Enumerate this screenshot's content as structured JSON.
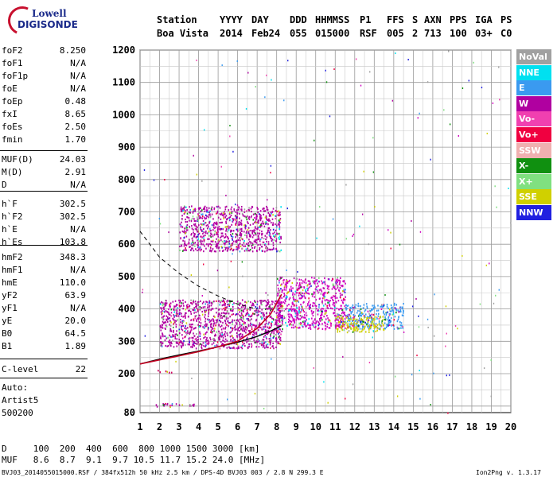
{
  "logo": {
    "line1": "Lowell",
    "line2": "DIGISONDE"
  },
  "header": {
    "labels": [
      "Station",
      "YYYY",
      "DAY",
      "DDD",
      "HHMMSS",
      "P1",
      "FFS",
      "S",
      "AXN",
      "PPS",
      "IGA",
      "PS"
    ],
    "values": [
      "Boa Vista",
      "2014",
      "Feb24",
      "055",
      "015000",
      "RSF",
      "005",
      "2",
      "713",
      "100",
      "03+",
      "C0"
    ]
  },
  "params": [
    {
      "name": "foF2",
      "value": "8.250"
    },
    {
      "name": "foF1",
      "value": "N/A"
    },
    {
      "name": "foF1p",
      "value": "N/A"
    },
    {
      "name": "foE",
      "value": "N/A"
    },
    {
      "name": "foEp",
      "value": "0.48"
    },
    {
      "name": "fxI",
      "value": "8.65"
    },
    {
      "name": "foEs",
      "value": "2.50"
    },
    {
      "name": "fmin",
      "value": "1.70"
    },
    {
      "name": "MUF(D)",
      "value": "24.03"
    },
    {
      "name": "M(D)",
      "value": "2.91"
    },
    {
      "name": "D",
      "value": "N/A"
    },
    {
      "name": "h`F",
      "value": "302.5"
    },
    {
      "name": "h`F2",
      "value": "302.5"
    },
    {
      "name": "h`E",
      "value": "N/A"
    },
    {
      "name": "h`Es",
      "value": "103.8"
    },
    {
      "name": "hmF2",
      "value": "348.3"
    },
    {
      "name": "hmF1",
      "value": "N/A"
    },
    {
      "name": "hmE",
      "value": "110.0"
    },
    {
      "name": "yF2",
      "value": "63.9"
    },
    {
      "name": "yF1",
      "value": "N/A"
    },
    {
      "name": "yE",
      "value": "20.0"
    },
    {
      "name": "B0",
      "value": "64.5"
    },
    {
      "name": "B1",
      "value": "1.89"
    },
    {
      "name": "C-level",
      "value": "22"
    }
  ],
  "auto": {
    "line1": "Auto:",
    "line2": "Artist5",
    "line3": "500200"
  },
  "legend": [
    {
      "label": "NoVal",
      "color": "#a0a0a0"
    },
    {
      "label": "NNE",
      "color": "#00e0f0"
    },
    {
      "label": "E",
      "color": "#3a9af0"
    },
    {
      "label": "W",
      "color": "#b000a0"
    },
    {
      "label": "Vo-",
      "color": "#f040b0"
    },
    {
      "label": "Vo+",
      "color": "#f00040"
    },
    {
      "label": "SSW",
      "color": "#f0b0b0"
    },
    {
      "label": "X-",
      "color": "#109010"
    },
    {
      "label": "X+",
      "color": "#80e080"
    },
    {
      "label": "SSE",
      "color": "#d0d000"
    },
    {
      "label": "NNW",
      "color": "#2020e0"
    }
  ],
  "bottom": {
    "d_line": "D     100  200  400  600  800 1000 1500 3000 [km]",
    "muf_line": "MUF   8.6  8.7  9.1  9.7 10.5 11.7 15.2 24.0 [MHz]"
  },
  "footer": {
    "left": "BVJ03_2014055015000.RSF / 384fx512h 50 kHz 2.5 km / DPS-4D BVJ03 003 / 2.8 N 299.3 E",
    "right": "Ion2Png v. 1.3.17"
  },
  "chart_data": {
    "type": "scatter",
    "xlabel": "",
    "ylabel": "",
    "xlim": [
      1,
      20
    ],
    "ylim": [
      80,
      1200
    ],
    "xticks": [
      1,
      2,
      3,
      4,
      5,
      6,
      7,
      8,
      9,
      10,
      11,
      12,
      13,
      14,
      15,
      16,
      17,
      18,
      19,
      20
    ],
    "yticks": [
      80,
      200,
      300,
      400,
      500,
      600,
      700,
      800,
      900,
      1000,
      1100,
      1200
    ],
    "grid": true,
    "legend_position": "right",
    "echo_clusters": [
      {
        "name": "F-trace",
        "color": "#b000a0",
        "fmin": 2.0,
        "fmax": 8.3,
        "hmin": 280,
        "hmax": 430
      },
      {
        "name": "F-trace-upper",
        "color": "#d000c0",
        "fmin": 8.0,
        "fmax": 11.5,
        "hmin": 340,
        "hmax": 500
      },
      {
        "name": "spread-F",
        "color": "#3a9af0",
        "fmin": 11.5,
        "fmax": 14.5,
        "hmin": 340,
        "hmax": 420
      },
      {
        "name": "oblique-SSE",
        "color": "#d0d000",
        "fmin": 11.0,
        "fmax": 13.5,
        "hmin": 330,
        "hmax": 380
      },
      {
        "name": "second-hop",
        "color": "#b000a0",
        "fmin": 3.0,
        "fmax": 8.2,
        "hmin": 580,
        "hmax": 720
      },
      {
        "name": "Es-trace",
        "color": "#b000a0",
        "fmin": 1.8,
        "fmax": 3.8,
        "hmin": 100,
        "hmax": 110
      },
      {
        "name": "Es-2nd",
        "color": "#d00060",
        "fmin": 1.9,
        "fmax": 2.6,
        "hmin": 205,
        "hmax": 212
      }
    ],
    "model_profile": [
      [
        1.0,
        230
      ],
      [
        2,
        245
      ],
      [
        3,
        258
      ],
      [
        4,
        270
      ],
      [
        5,
        283
      ],
      [
        6,
        297
      ],
      [
        7,
        315
      ],
      [
        7.7,
        332
      ],
      [
        8.25,
        348
      ]
    ],
    "virtual_height_curve": [
      [
        1.0,
        230
      ],
      [
        3,
        255
      ],
      [
        4,
        268
      ],
      [
        5,
        283
      ],
      [
        6,
        300
      ],
      [
        7,
        340
      ],
      [
        7.7,
        385
      ],
      [
        8.25,
        445
      ]
    ],
    "dashed_curve": [
      [
        1.0,
        640
      ],
      [
        2,
        560
      ],
      [
        3,
        510
      ],
      [
        4,
        470
      ],
      [
        5,
        440
      ],
      [
        6,
        415
      ],
      [
        7,
        400
      ]
    ]
  }
}
